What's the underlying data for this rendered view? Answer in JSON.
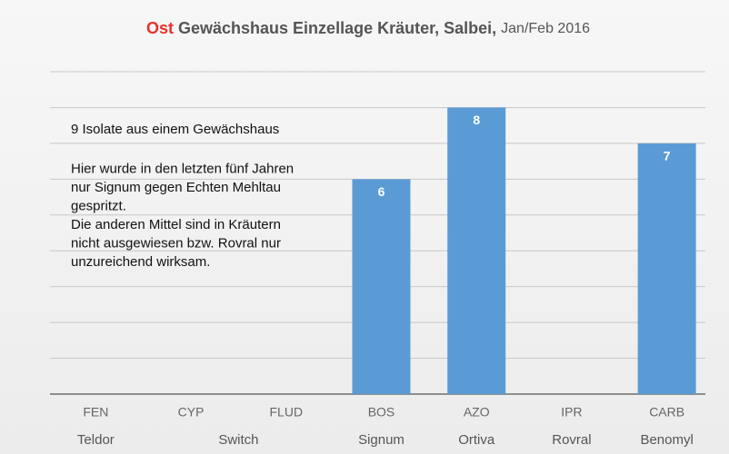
{
  "chart_data": {
    "type": "bar",
    "title": {
      "prefix": "Ost",
      "main": "Gewächshaus Einzellage Kräuter, Salbei,",
      "suffix": "Jan/Feb 2016"
    },
    "categories": [
      "FEN",
      "CYP",
      "FLUD",
      "BOS",
      "AZO",
      "IPR",
      "CARB"
    ],
    "values": [
      null,
      null,
      null,
      6,
      8,
      null,
      7
    ],
    "product_groups": [
      {
        "name": "Teldor",
        "count": 1
      },
      {
        "name": "Switch",
        "count": 2
      },
      {
        "name": "Signum",
        "count": 1
      },
      {
        "name": "Ortiva",
        "count": 1
      },
      {
        "name": "Rovral",
        "count": 1
      },
      {
        "name": "Benomyl",
        "count": 1
      }
    ],
    "annotation": [
      [
        "9 Isolate aus einem Gewächshaus"
      ],
      [
        "Hier wurde in den letzten fünf Jahren",
        "nur Signum gegen Echten Mehltau",
        "gespritzt.",
        "Die anderen Mittel sind in Kräutern",
        "nicht ausgewiesen bzw. Rovral nur",
        "unzureichend wirksam."
      ]
    ],
    "color": "#5b9bd5",
    "title_accent_color": "#e8302a",
    "ylim": [
      0,
      9
    ],
    "yticks": [
      0,
      1,
      2,
      3,
      4,
      5,
      6,
      7,
      8,
      9
    ],
    "grid": true
  }
}
